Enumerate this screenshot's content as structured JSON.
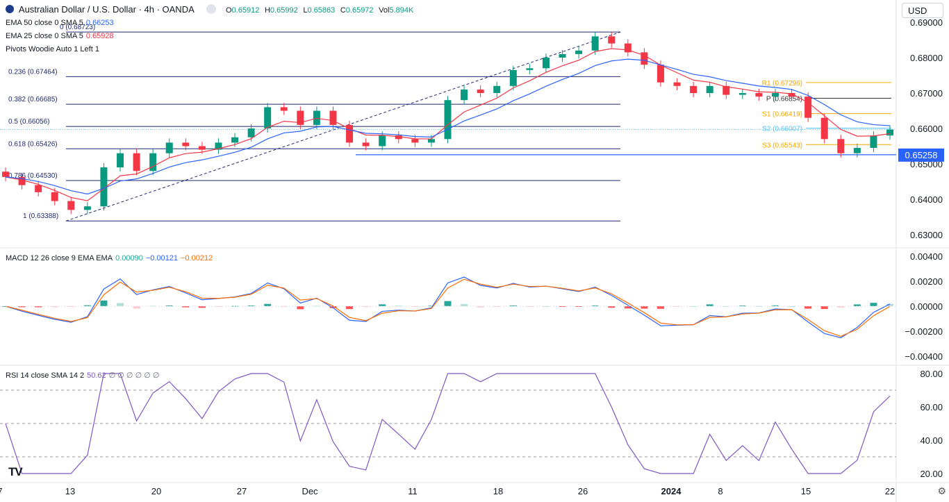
{
  "header": {
    "title": "Australian Dollar / U.S. Dollar · 4h · OANDA",
    "open": "0.65912",
    "high": "0.65992",
    "low": "0.65863",
    "close": "0.65972",
    "volume": "5.894K",
    "currency": "USD"
  },
  "indicators": {
    "ema50": {
      "label": "EMA 50 close 0 SMA 5",
      "value": "0.66253",
      "color": "#2962ff"
    },
    "ema25": {
      "label": "EMA 25 close 0 SMA 5",
      "value": "0.65928",
      "color": "#f23645"
    },
    "pivots": {
      "label": "Pivots Woodie Auto 1 Left 1"
    },
    "macd": {
      "label": "MACD 12 26 close 9 EMA EMA",
      "hist": "0.00090",
      "macd": "−0.00121",
      "signal": "−0.00212"
    },
    "rsi": {
      "label": "RSI 14 close SMA 14 2",
      "value": "50.62",
      "extra": "∅ ∅ ∅ ∅ ∅ ∅"
    }
  },
  "colors": {
    "up": "#089981",
    "down": "#f23645",
    "fib": "#1e2a6e",
    "pivot": "#f7a600",
    "macd": "#2962ff",
    "signal": "#ff6d00",
    "rsi": "#7e57c2",
    "hline": "#2962ff"
  },
  "chart_data": {
    "type": "candlestick",
    "title": "Australian Dollar / U.S. Dollar · 4h · OANDA",
    "ylim": [
      0.625,
      0.692
    ],
    "price_ticks": [
      "0.69000",
      "0.68000",
      "0.67000",
      "0.66000",
      "0.65000",
      "0.64000",
      "0.63000"
    ],
    "time_ticks": [
      "7",
      "13",
      "20",
      "27",
      "Dec",
      "11",
      "18",
      "26",
      "2024",
      "8",
      "15",
      "22"
    ],
    "closes": [
      0.6463,
      0.644,
      0.642,
      0.6395,
      0.637,
      0.638,
      0.649,
      0.653,
      0.648,
      0.653,
      0.656,
      0.655,
      0.654,
      0.656,
      0.6575,
      0.66,
      0.666,
      0.665,
      0.661,
      0.665,
      0.661,
      0.656,
      0.655,
      0.658,
      0.657,
      0.656,
      0.657,
      0.668,
      0.671,
      0.67,
      0.672,
      0.6765,
      0.677,
      0.68,
      0.681,
      0.682,
      0.686,
      0.684,
      0.6815,
      0.678,
      0.673,
      0.672,
      0.67,
      0.672,
      0.6695,
      0.67,
      0.669,
      0.67,
      0.669,
      0.663,
      0.657,
      0.653,
      0.6545,
      0.658,
      0.6597
    ],
    "fib_levels": [
      {
        "label": "0 (0.68723)",
        "value": 0.68723
      },
      {
        "label": "0.236 (0.67464)",
        "value": 0.67464
      },
      {
        "label": "0.382 (0.66685)",
        "value": 0.66685
      },
      {
        "label": "0.5 (0.66056)",
        "value": 0.66056
      },
      {
        "label": "0.618 (0.65426)",
        "value": 0.65426
      },
      {
        "label": "0.786 (0.64530)",
        "value": 0.6453
      },
      {
        "label": "1 (0.63388)",
        "value": 0.63388
      }
    ],
    "pivots": [
      {
        "label": "R1 (0.67296)",
        "value": 0.67296
      },
      {
        "label": "P (0.66854)",
        "value": 0.66854
      },
      {
        "label": "S1 (0.66419)",
        "value": 0.66419
      },
      {
        "label": "S2 (0.66007)",
        "value": 0.66007
      },
      {
        "label": "S3 (0.65543)",
        "value": 0.65543
      }
    ],
    "horizontal_line": {
      "label": "0.65258",
      "value": 0.65258
    },
    "macd_ticks": [
      "0.00400",
      "0.00200",
      "0.00000",
      "−0.00200",
      "−0.00400"
    ],
    "rsi_ticks": [
      "80.00",
      "60.00",
      "40.00",
      "20.00"
    ],
    "rsi_bands": [
      70,
      50,
      30
    ]
  }
}
